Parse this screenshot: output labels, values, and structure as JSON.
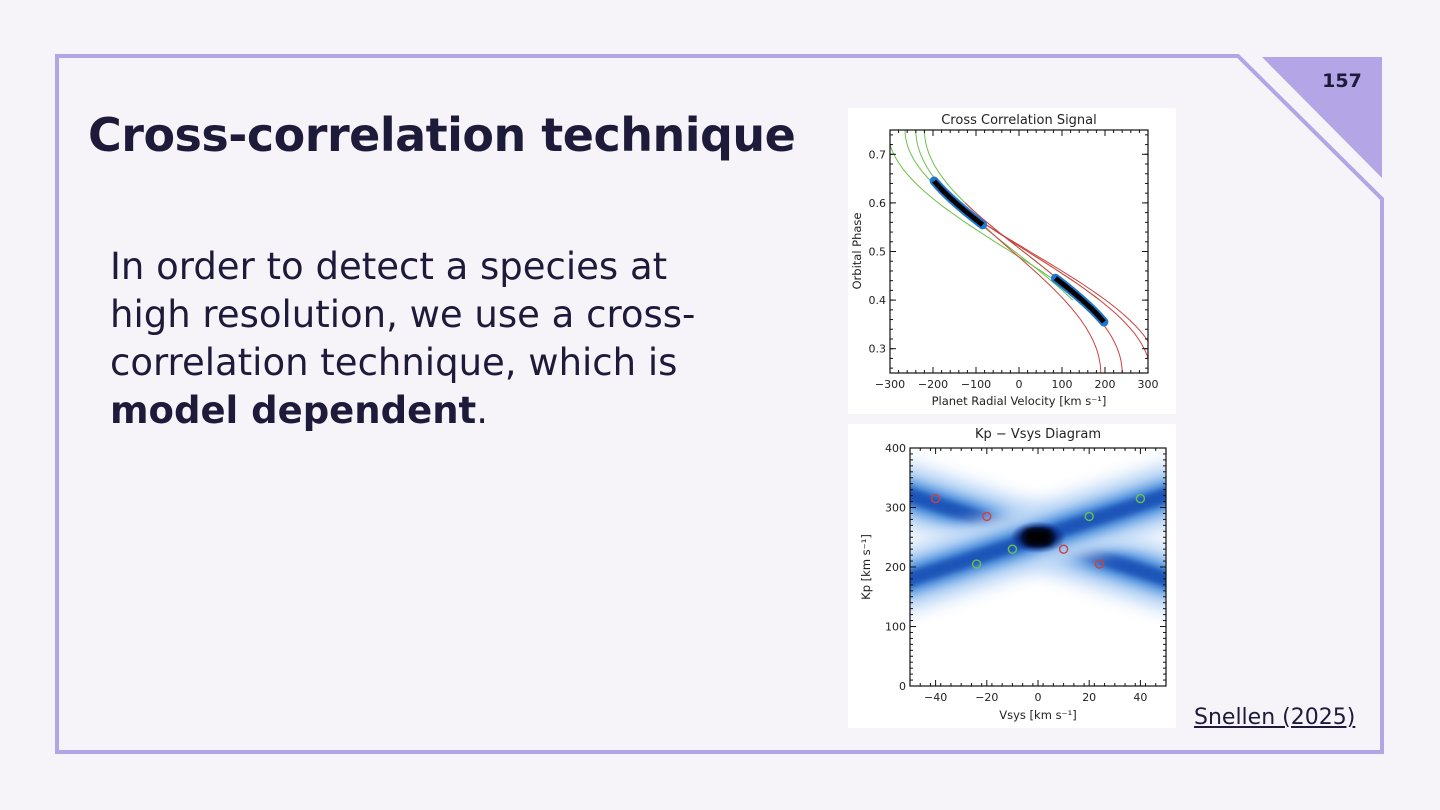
{
  "slide": {
    "page_number": "157",
    "title": "Cross-correlation technique",
    "body_prefix": "In order to detect a species at high resolution, we use a cross-correlation technique, which is ",
    "body_strong": "model dependent",
    "body_suffix": ".",
    "citation": "Snellen (2025)"
  },
  "colors": {
    "background": "#f6f4f8",
    "frame": "#b3a5e6",
    "text": "#1e1b3a",
    "trail_blue": "#1f78d0",
    "model_green": "#6cc04a",
    "model_red": "#d04040"
  },
  "chart_data": [
    {
      "type": "line",
      "title": "Cross Correlation Signal",
      "xlabel": "Planet Radial Velocity [km s⁻¹]",
      "ylabel": "Orbital Phase",
      "xlim": [
        -300,
        300
      ],
      "ylim": [
        0.25,
        0.75
      ],
      "x_ticks": [
        "−300",
        "−200",
        "−100",
        "0",
        "100",
        "200",
        "300"
      ],
      "y_ticks": [
        "0.3",
        "0.4",
        "0.5",
        "0.6",
        "0.7"
      ],
      "signal_segments": [
        {
          "phase": [
            0.555,
            0.645
          ],
          "vsys": 0,
          "kp": 250
        },
        {
          "phase": [
            0.355,
            0.445
          ],
          "vsys": 0,
          "kp": 250
        }
      ],
      "model_tracks": [
        {
          "color": "green",
          "vsys": -20,
          "kp": 285
        },
        {
          "color": "green",
          "vsys": 20,
          "kp": 285
        },
        {
          "color": "green",
          "vsys": -10,
          "kp": 230
        },
        {
          "color": "green",
          "vsys": 10,
          "kp": 230
        },
        {
          "color": "red",
          "vsys": 20,
          "kp": 285
        },
        {
          "color": "red",
          "vsys": 25,
          "kp": 300
        },
        {
          "color": "red",
          "vsys": 10,
          "kp": 230
        },
        {
          "color": "red",
          "vsys": -15,
          "kp": 205
        }
      ]
    },
    {
      "type": "heatmap",
      "title": "Kp − Vsys Diagram",
      "xlabel": "Vsys [km s⁻¹]",
      "ylabel": "Kp [km s⁻¹]",
      "xlim": [
        -50,
        50
      ],
      "ylim": [
        0,
        400
      ],
      "x_ticks": [
        "−40",
        "−20",
        "0",
        "20",
        "40"
      ],
      "y_ticks": [
        "0",
        "100",
        "200",
        "300",
        "400"
      ],
      "peak": {
        "vsys": 0,
        "kp": 250
      },
      "markers": [
        {
          "vsys": -40,
          "kp": 315,
          "color": "red"
        },
        {
          "vsys": -20,
          "kp": 285,
          "color": "red"
        },
        {
          "vsys": 10,
          "kp": 230,
          "color": "red"
        },
        {
          "vsys": 24,
          "kp": 205,
          "color": "red"
        },
        {
          "vsys": 40,
          "kp": 315,
          "color": "green"
        },
        {
          "vsys": 20,
          "kp": 285,
          "color": "green"
        },
        {
          "vsys": -10,
          "kp": 230,
          "color": "green"
        },
        {
          "vsys": -24,
          "kp": 205,
          "color": "green"
        }
      ]
    }
  ]
}
